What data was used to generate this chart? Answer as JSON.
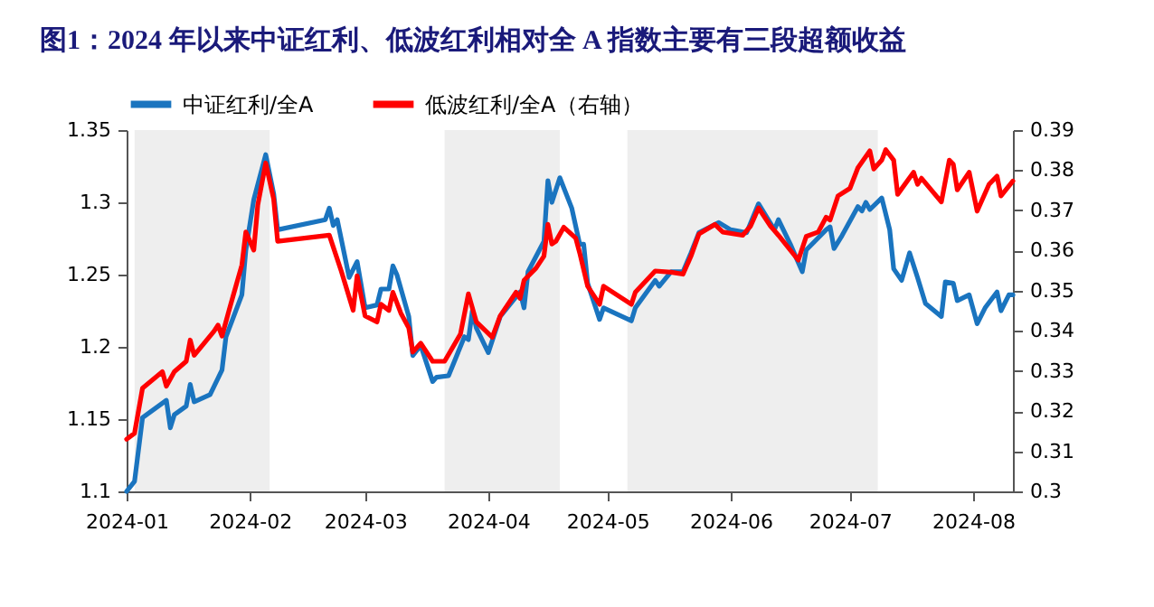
{
  "chart_data": {
    "type": "line",
    "title": "图1：2024 年以来中证红利、低波红利相对全 A 指数主要有三段超额收益",
    "xlim": [
      "2024-01-01",
      "2024-08-11"
    ],
    "xticks": [
      "2024-01",
      "2024-02",
      "2024-03",
      "2024-04",
      "2024-05",
      "2024-06",
      "2024-07",
      "2024-08"
    ],
    "ylim": [
      1.1,
      1.35
    ],
    "yticks": [
      1.1,
      1.15,
      1.2,
      1.25,
      1.3,
      1.35
    ],
    "y2lim": [
      0.3,
      0.39
    ],
    "y2ticks": [
      0.3,
      0.31,
      0.32,
      0.33,
      0.34,
      0.35,
      0.36,
      0.37,
      0.38,
      0.39
    ],
    "grid": false,
    "legend": "top",
    "marker": "none",
    "line_style": "solid",
    "bands": [
      {
        "axis": "x",
        "from": "2024-01-03",
        "to": "2024-02-06",
        "color": "#eeeeee"
      },
      {
        "axis": "x",
        "from": "2024-03-21",
        "to": "2024-04-19",
        "color": "#eeeeee"
      },
      {
        "axis": "x",
        "from": "2024-05-06",
        "to": "2024-07-08",
        "color": "#eeeeee"
      }
    ],
    "series": [
      {
        "name": "中证红利/全A",
        "color": "#1a74bf",
        "x": [
          "2024-01-01",
          "2024-01-03",
          "2024-01-05",
          "2024-01-10",
          "2024-01-11",
          "2024-01-12",
          "2024-01-13",
          "2024-01-16",
          "2024-01-17",
          "2024-01-18",
          "2024-01-22",
          "2024-01-25",
          "2024-01-26",
          "2024-01-30",
          "2024-01-31",
          "2024-02-02",
          "2024-02-05",
          "2024-02-07",
          "2024-02-08",
          "2024-02-20",
          "2024-02-21",
          "2024-02-22",
          "2024-02-23",
          "2024-02-26",
          "2024-02-28",
          "2024-03-01",
          "2024-03-04",
          "2024-03-05",
          "2024-03-07",
          "2024-03-08",
          "2024-03-09",
          "2024-03-12",
          "2024-03-13",
          "2024-03-15",
          "2024-03-18",
          "2024-03-19",
          "2024-03-22",
          "2024-03-26",
          "2024-03-27",
          "2024-03-28",
          "2024-03-29",
          "2024-04-01",
          "2024-04-04",
          "2024-04-09",
          "2024-04-10",
          "2024-04-11",
          "2024-04-15",
          "2024-04-16",
          "2024-04-17",
          "2024-04-19",
          "2024-04-22",
          "2024-04-24",
          "2024-04-25",
          "2024-04-26",
          "2024-04-29",
          "2024-04-30",
          "2024-05-07",
          "2024-05-08",
          "2024-05-13",
          "2024-05-14",
          "2024-05-17",
          "2024-05-20",
          "2024-05-22",
          "2024-05-24",
          "2024-05-29",
          "2024-06-01",
          "2024-06-05",
          "2024-06-08",
          "2024-06-12",
          "2024-06-13",
          "2024-06-16",
          "2024-06-19",
          "2024-06-20",
          "2024-06-25",
          "2024-06-26",
          "2024-06-27",
          "2024-06-29",
          "2024-07-03",
          "2024-07-04",
          "2024-07-05",
          "2024-07-06",
          "2024-07-09",
          "2024-07-11",
          "2024-07-12",
          "2024-07-14",
          "2024-07-16",
          "2024-07-18",
          "2024-07-20",
          "2024-07-24",
          "2024-07-25",
          "2024-07-27",
          "2024-07-28",
          "2024-07-31",
          "2024-08-02",
          "2024-08-04",
          "2024-08-07",
          "2024-08-08",
          "2024-08-10",
          "2024-08-11"
        ],
        "values": [
          1.1,
          1.107,
          1.151,
          1.161,
          1.163,
          1.144,
          1.153,
          1.159,
          1.174,
          1.162,
          1.167,
          1.184,
          1.207,
          1.236,
          1.267,
          1.302,
          1.333,
          1.306,
          1.281,
          1.288,
          1.296,
          1.284,
          1.288,
          1.248,
          1.259,
          1.227,
          1.229,
          1.24,
          1.24,
          1.256,
          1.25,
          1.221,
          1.194,
          1.201,
          1.176,
          1.179,
          1.18,
          1.207,
          1.205,
          1.225,
          1.213,
          1.196,
          1.221,
          1.238,
          1.227,
          1.252,
          1.273,
          1.315,
          1.3,
          1.317,
          1.296,
          1.271,
          1.271,
          1.244,
          1.219,
          1.227,
          1.218,
          1.227,
          1.246,
          1.242,
          1.252,
          1.252,
          1.265,
          1.279,
          1.286,
          1.281,
          1.279,
          1.299,
          1.281,
          1.288,
          1.271,
          1.252,
          1.267,
          1.281,
          1.283,
          1.268,
          1.277,
          1.297,
          1.294,
          1.3,
          1.295,
          1.303,
          1.281,
          1.254,
          1.246,
          1.265,
          1.248,
          1.23,
          1.221,
          1.245,
          1.244,
          1.232,
          1.236,
          1.216,
          1.227,
          1.238,
          1.225,
          1.236,
          1.236
        ]
      },
      {
        "name": "低波红利/全A（右轴）",
        "color": "#ff0000",
        "axis": "y2",
        "x": [
          "2024-01-01",
          "2024-01-03",
          "2024-01-05",
          "2024-01-10",
          "2024-01-11",
          "2024-01-13",
          "2024-01-16",
          "2024-01-17",
          "2024-01-18",
          "2024-01-23",
          "2024-01-24",
          "2024-01-25",
          "2024-01-27",
          "2024-01-30",
          "2024-01-31",
          "2024-02-02",
          "2024-02-03",
          "2024-02-05",
          "2024-02-07",
          "2024-02-08",
          "2024-02-21",
          "2024-02-24",
          "2024-02-27",
          "2024-02-28",
          "2024-03-01",
          "2024-03-04",
          "2024-03-05",
          "2024-03-07",
          "2024-03-08",
          "2024-03-10",
          "2024-03-12",
          "2024-03-13",
          "2024-03-15",
          "2024-03-18",
          "2024-03-21",
          "2024-03-25",
          "2024-03-27",
          "2024-03-29",
          "2024-04-02",
          "2024-04-04",
          "2024-04-08",
          "2024-04-09",
          "2024-04-10",
          "2024-04-13",
          "2024-04-15",
          "2024-04-16",
          "2024-04-17",
          "2024-04-18",
          "2024-04-20",
          "2024-04-23",
          "2024-04-24",
          "2024-04-26",
          "2024-04-29",
          "2024-04-30",
          "2024-05-07",
          "2024-05-08",
          "2024-05-13",
          "2024-05-17",
          "2024-05-20",
          "2024-05-22",
          "2024-05-24",
          "2024-05-28",
          "2024-05-30",
          "2024-06-04",
          "2024-06-06",
          "2024-06-08",
          "2024-06-11",
          "2024-06-13",
          "2024-06-18",
          "2024-06-20",
          "2024-06-23",
          "2024-06-25",
          "2024-06-26",
          "2024-06-28",
          "2024-07-01",
          "2024-07-03",
          "2024-07-06",
          "2024-07-07",
          "2024-07-09",
          "2024-07-10",
          "2024-07-12",
          "2024-07-13",
          "2024-07-17",
          "2024-07-18",
          "2024-07-19",
          "2024-07-24",
          "2024-07-26",
          "2024-07-27",
          "2024-07-28",
          "2024-07-31",
          "2024-08-02",
          "2024-08-05",
          "2024-08-07",
          "2024-08-08",
          "2024-08-11"
        ],
        "values": [
          0.313,
          0.3145,
          0.3257,
          0.3298,
          0.3262,
          0.3298,
          0.3324,
          0.3377,
          0.3339,
          0.3399,
          0.3414,
          0.3387,
          0.3459,
          0.3564,
          0.3646,
          0.3601,
          0.3713,
          0.3818,
          0.3728,
          0.3623,
          0.3638,
          0.3549,
          0.3451,
          0.3537,
          0.3437,
          0.3422,
          0.3466,
          0.3451,
          0.3496,
          0.3444,
          0.3407,
          0.3347,
          0.3369,
          0.3324,
          0.3324,
          0.3392,
          0.3492,
          0.3422,
          0.3384,
          0.3437,
          0.3496,
          0.3481,
          0.3526,
          0.3556,
          0.3586,
          0.3665,
          0.3616,
          0.3623,
          0.3658,
          0.3631,
          0.3594,
          0.3511,
          0.3466,
          0.3511,
          0.3466,
          0.3496,
          0.3549,
          0.3546,
          0.3541,
          0.3586,
          0.3641,
          0.3665,
          0.3646,
          0.3638,
          0.3661,
          0.3706,
          0.3661,
          0.3638,
          0.3576,
          0.3635,
          0.3646,
          0.3683,
          0.3676,
          0.3736,
          0.3755,
          0.3806,
          0.3848,
          0.3803,
          0.3825,
          0.3851,
          0.3825,
          0.374,
          0.3795,
          0.3765,
          0.378,
          0.3721,
          0.3825,
          0.3815,
          0.3751,
          0.3795,
          0.3698,
          0.3765,
          0.3785,
          0.3736,
          0.3773
        ]
      }
    ]
  }
}
